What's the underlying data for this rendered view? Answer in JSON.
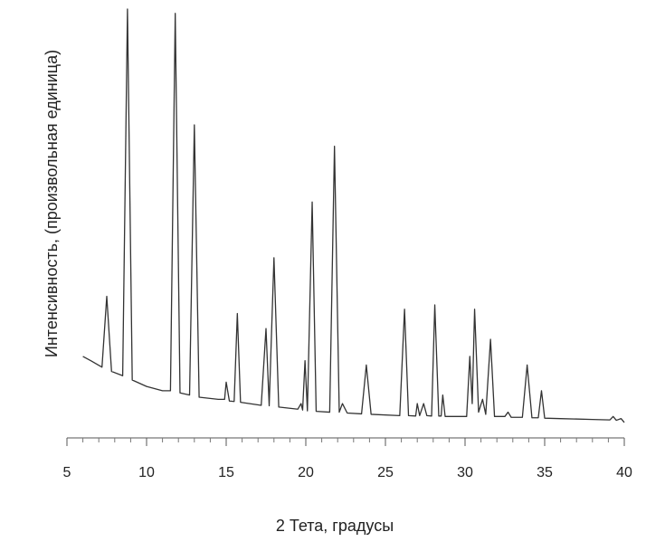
{
  "chart_data": {
    "type": "line",
    "x_label": "2 Тета, градусы",
    "y_label": "Интенсивность, (произвольная единица)",
    "x": [
      6.0,
      6.5,
      7.2,
      7.5,
      7.8,
      8.5,
      8.8,
      9.1,
      10,
      11,
      11.5,
      11.8,
      12.1,
      12.7,
      13.0,
      13.3,
      14.5,
      14.9,
      15.0,
      15.2,
      15.5,
      15.7,
      15.9,
      17.2,
      17.5,
      17.7,
      18.0,
      18.3,
      19.5,
      19.7,
      19.8,
      19.95,
      20.1,
      20.4,
      20.65,
      21.5,
      21.8,
      22.1,
      22.3,
      22.6,
      23.5,
      23.8,
      24.1,
      25.9,
      26.2,
      26.45,
      26.9,
      27.0,
      27.15,
      27.4,
      27.6,
      27.9,
      28.1,
      28.35,
      28.5,
      28.6,
      28.75,
      30.1,
      30.3,
      30.45,
      30.6,
      30.85,
      31.1,
      31.3,
      31.6,
      31.85,
      32.5,
      32.7,
      32.9,
      33.6,
      33.9,
      34.2,
      34.6,
      34.8,
      35.0,
      36,
      38,
      39.1,
      39.3,
      39.5,
      39.8,
      40
    ],
    "values": [
      19,
      18,
      16.5,
      33,
      15.5,
      14.5,
      100,
      13.5,
      12,
      11,
      11,
      99,
      10.5,
      10,
      73,
      9.5,
      9,
      9,
      13,
      8.6,
      8.5,
      29,
      8.3,
      7.6,
      25.5,
      7.5,
      42,
      7.2,
      6.7,
      8,
      6.5,
      18,
      6.3,
      55,
      6.2,
      6,
      68,
      6,
      8,
      5.8,
      5.6,
      17,
      5.5,
      5.2,
      30,
      5.2,
      5.1,
      8,
      5.2,
      8,
      5.2,
      5.1,
      31,
      5.1,
      5.1,
      10,
      5,
      5,
      19,
      8,
      30,
      6,
      9,
      5.5,
      23,
      5,
      5,
      6,
      4.8,
      4.8,
      17,
      4.7,
      4.7,
      11,
      4.6,
      4.5,
      4.3,
      4.2,
      5,
      4.1,
      4.5,
      3.6
    ],
    "color": "#333333",
    "xlim": [
      5,
      40
    ],
    "xticks": [
      5,
      10,
      15,
      20,
      25,
      30,
      35,
      40
    ],
    "xminor_ticks": [
      6,
      7,
      8,
      9,
      11,
      12,
      13,
      14,
      16,
      17,
      18,
      19,
      21,
      22,
      23,
      24,
      26,
      27,
      28,
      29,
      31,
      32,
      33,
      34,
      36,
      37,
      38,
      39
    ],
    "ylim": [
      0,
      100
    ]
  }
}
